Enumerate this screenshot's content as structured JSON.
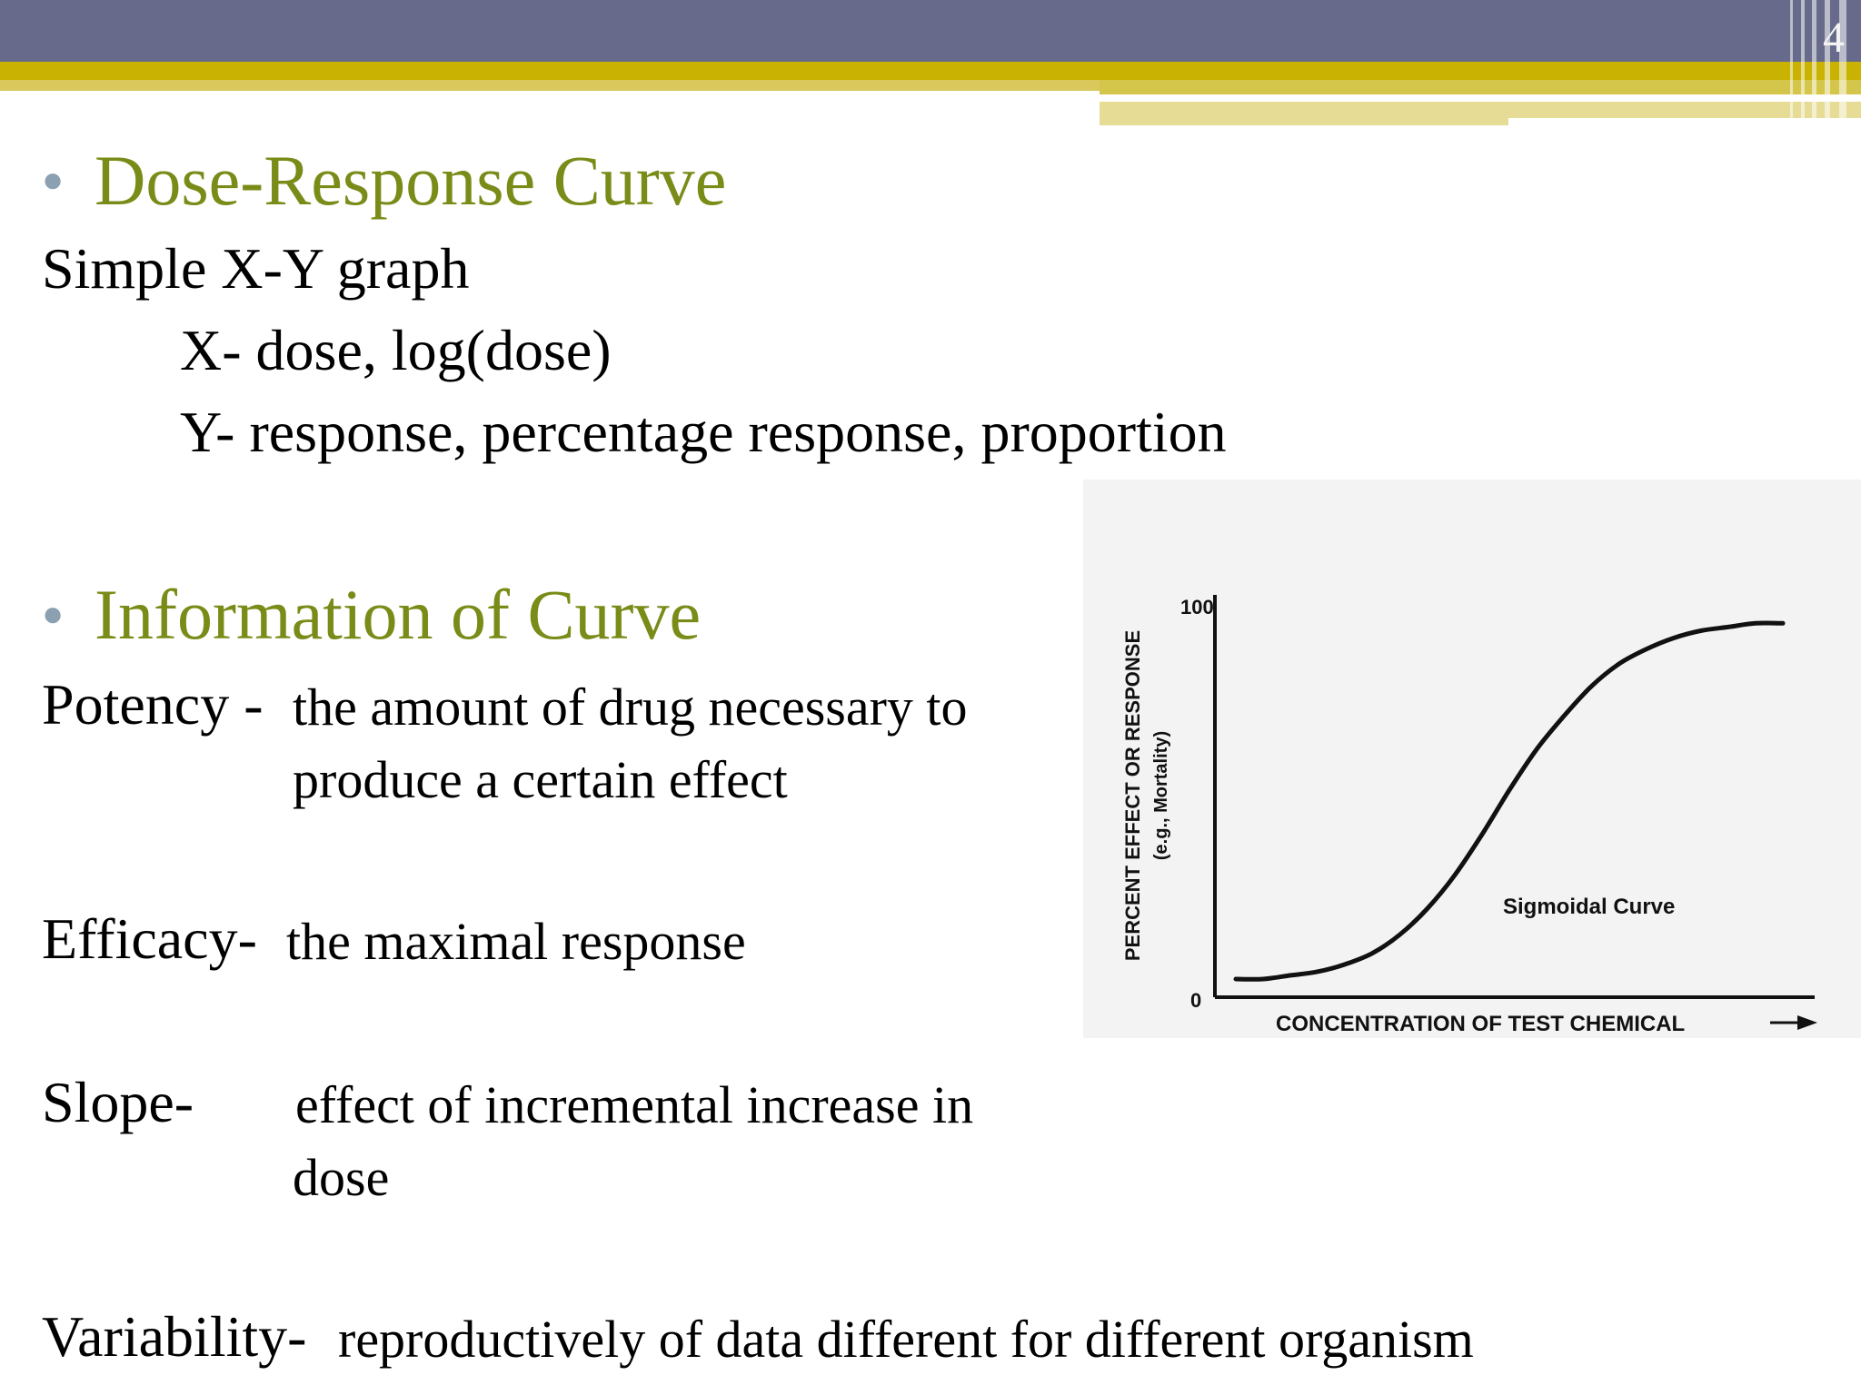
{
  "slide": {
    "number": "4"
  },
  "sections": [
    {
      "heading": "Dose-Response Curve",
      "lines": [
        "Simple X-Y graph",
        "X- dose, log(dose)",
        "Y- response, percentage response, proportion"
      ]
    },
    {
      "heading": "Information of Curve",
      "terms": [
        {
          "term": "Potency - ",
          "definition": [
            "the amount of drug necessary to",
            "produce a certain effect"
          ]
        },
        {
          "term": "Efficacy- ",
          "definition": [
            "the maximal response"
          ]
        },
        {
          "term": "Slope-",
          "definition": [
            "effect of incremental increase in",
            "dose"
          ]
        },
        {
          "term": "Variability- ",
          "definition": [
            "reproductively of data different for different organism"
          ]
        }
      ]
    }
  ],
  "chart_data": {
    "type": "line",
    "title": "",
    "xlabel": "CONCENTRATION OF TEST CHEMICAL",
    "ylabel": "PERCENT EFFECT OR RESPONSE",
    "ylabel_sub": "(e.g., Mortality)",
    "y_ticks": [
      "0",
      "100"
    ],
    "ylim": [
      0,
      100
    ],
    "annotation": "Sigmoidal Curve",
    "series": [
      {
        "x": [
          0,
          0.05,
          0.1,
          0.15,
          0.2,
          0.25,
          0.3,
          0.35,
          0.4,
          0.45,
          0.5,
          0.55,
          0.6,
          0.65,
          0.7,
          0.75,
          0.8,
          0.85,
          0.9,
          0.95,
          1.0
        ],
        "values": [
          0,
          0,
          1,
          2,
          4,
          7,
          12,
          19,
          28,
          39,
          51,
          62,
          71,
          79,
          85,
          89,
          92,
          94,
          95,
          96,
          96
        ]
      }
    ],
    "grid": false
  }
}
